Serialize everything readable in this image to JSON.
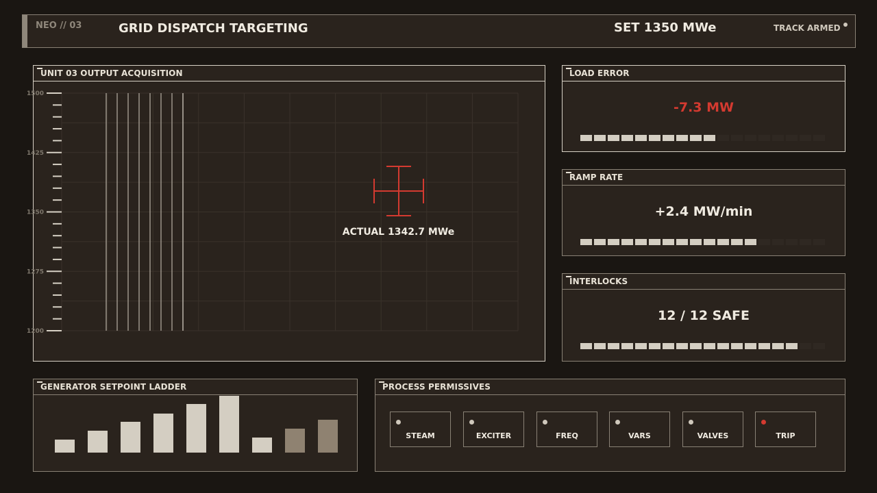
{
  "header": {
    "code": "NEO // 03",
    "title": "GRID DISPATCH TARGETING",
    "setpoint": "SET 1350 MWe",
    "status": "TRACK ARMED"
  },
  "main": {
    "title": "UNIT 03 OUTPUT ACQUISITION",
    "y_ticks": [
      "1500",
      "1425",
      "1350",
      "1275",
      "1200"
    ],
    "actual_label": "ACTUAL 1342.7 MWe"
  },
  "stats": [
    {
      "title": "LOAD ERROR",
      "value": "-7.3 MW",
      "value_color": "#d43a30",
      "lit": 10,
      "total": 18
    },
    {
      "title": "RAMP RATE",
      "value": "+2.4 MW/min",
      "value_color": "#f0ebe1",
      "lit": 13,
      "total": 18
    },
    {
      "title": "INTERLOCKS",
      "value": "12 / 12 SAFE",
      "value_color": "#f0ebe1",
      "lit": 16,
      "total": 18
    }
  ],
  "ladder": {
    "title": "GENERATOR SETPOINT LADDER",
    "bar_levels": [
      0.23,
      0.38,
      0.54,
      0.69,
      0.85,
      1.0,
      0.27,
      0.42,
      0.58
    ],
    "bar_states": [
      "on",
      "on",
      "on",
      "on",
      "on",
      "on",
      "on",
      "dim",
      "dim"
    ]
  },
  "permissives": {
    "title": "PROCESS PERMISSIVES",
    "items": [
      {
        "label": "STEAM",
        "state": "ok"
      },
      {
        "label": "EXCITER",
        "state": "ok"
      },
      {
        "label": "FREQ",
        "state": "ok"
      },
      {
        "label": "VARS",
        "state": "ok"
      },
      {
        "label": "VALVES",
        "state": "ok"
      },
      {
        "label": "TRIP",
        "state": "alarm"
      }
    ]
  },
  "colors": {
    "background": "#1a1612",
    "panel": "#2a231d",
    "border": "#8a8276",
    "accent_red": "#d43a30",
    "segment_on": "#d4cec2",
    "bar_dim": "#8f8271"
  }
}
